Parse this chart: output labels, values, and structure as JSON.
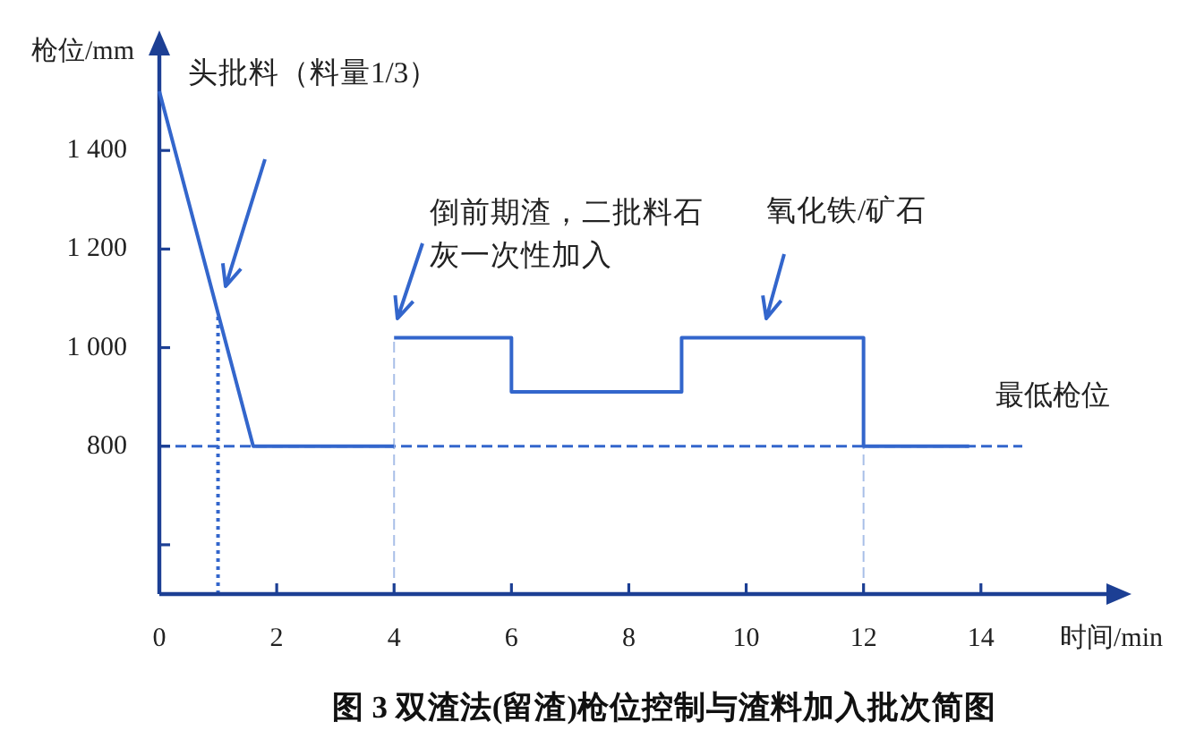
{
  "chart_data": {
    "type": "line",
    "title": "图 3 双渣法(留渣)枪位控制与渣料加入批次简图",
    "xlabel": "时间/min",
    "ylabel": "枪位/mm",
    "series": [
      {
        "color": "#3366cc",
        "x": [
          0,
          1.6,
          4
        ],
        "values": [
          1520,
          800,
          800
        ]
      },
      {
        "color": "#3366cc",
        "x": [
          4,
          6,
          6,
          8.9,
          8.9,
          12,
          12,
          13.8
        ],
        "values": [
          1020,
          1020,
          910,
          910,
          1020,
          1020,
          800,
          800
        ]
      }
    ],
    "xlim": [
      0,
      16.2
    ],
    "ylim": [
      500,
      1600
    ],
    "xticks": [
      0,
      2,
      4,
      6,
      8,
      10,
      12,
      14
    ],
    "yticks": [
      {
        "value": 600,
        "label": null
      },
      800,
      {
        "value": 1000,
        "label": "1 000"
      },
      {
        "value": 1200,
        "label": "1 200"
      },
      {
        "value": 1400,
        "label": "1 400"
      }
    ],
    "ref_lines": [
      {
        "axis": "y",
        "value": 800,
        "label": "最低枪位",
        "color": "#3366cc",
        "line_style": "dashed"
      },
      {
        "axis": "x",
        "value": 1.0,
        "color": "#3366cc",
        "line_style": "dotted"
      },
      {
        "axis": "x",
        "value": 4,
        "color": "#a9bfe8",
        "line_style": "dashed"
      },
      {
        "axis": "x",
        "value": 12,
        "color": "#a9bfe8",
        "line_style": "dashed"
      }
    ],
    "annotations": [
      "头批料（料量1/3）",
      "倒前期渣，二批料石灰一次性加入",
      "氧化铁/矿石"
    ],
    "marker": "none",
    "line_style": "solid"
  }
}
